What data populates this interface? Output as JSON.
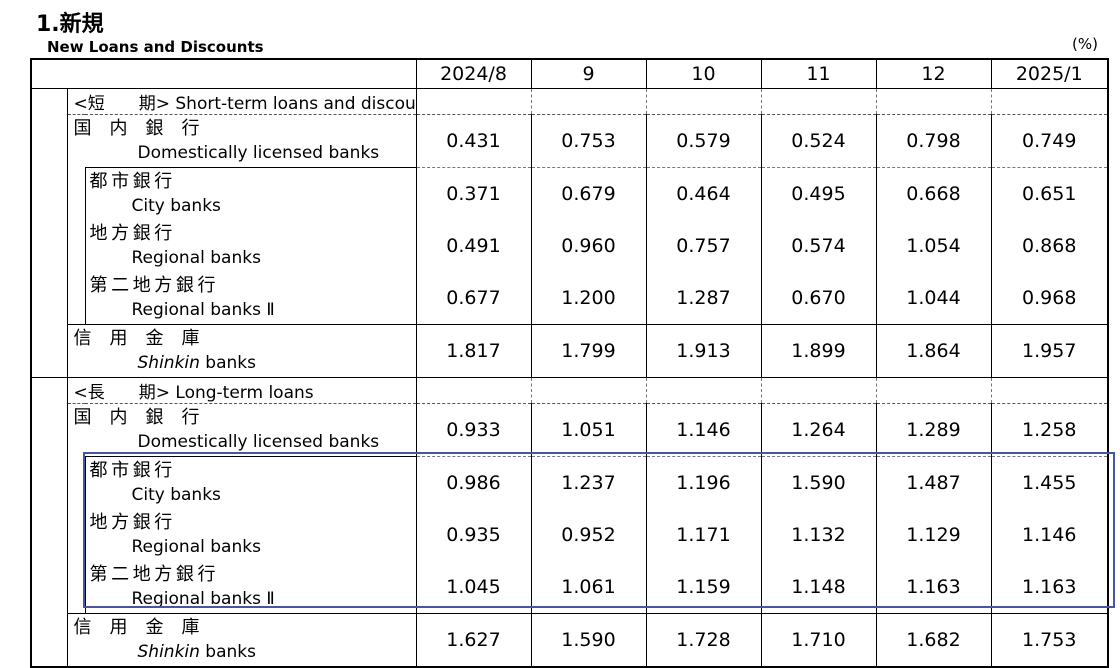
{
  "heading": {
    "title": "1.新規",
    "subtitle": "New Loans and Discounts",
    "unit": "(%)"
  },
  "columns": [
    "2024/8",
    "9",
    "10",
    "11",
    "12",
    "2025/1"
  ],
  "sections": [
    {
      "label": "<短　　期> Short-term loans and discounts",
      "rows": [
        {
          "jp": "国　内　銀　行",
          "en": "Domestically licensed banks",
          "level": 1,
          "values": [
            "0.431",
            "0.753",
            "0.579",
            "0.524",
            "0.798",
            "0.749"
          ]
        },
        {
          "jp": "都市銀行",
          "en": "City banks",
          "level": 2,
          "values": [
            "0.371",
            "0.679",
            "0.464",
            "0.495",
            "0.668",
            "0.651"
          ]
        },
        {
          "jp": "地方銀行",
          "en": "Regional banks",
          "level": 2,
          "values": [
            "0.491",
            "0.960",
            "0.757",
            "0.574",
            "1.054",
            "0.868"
          ]
        },
        {
          "jp": "第二地方銀行",
          "en": "Regional banks Ⅱ",
          "level": 2,
          "values": [
            "0.677",
            "1.200",
            "1.287",
            "0.670",
            "1.044",
            "0.968"
          ]
        },
        {
          "jp": "信　用　金　庫",
          "en_italic": "Shinkin",
          "en": " banks",
          "level": 1,
          "values": [
            "1.817",
            "1.799",
            "1.913",
            "1.899",
            "1.864",
            "1.957"
          ]
        }
      ]
    },
    {
      "label": "<長　　期> Long-term loans",
      "rows": [
        {
          "jp": "国　内　銀　行",
          "en": "Domestically licensed banks",
          "level": 1,
          "values": [
            "0.933",
            "1.051",
            "1.146",
            "1.264",
            "1.289",
            "1.258"
          ]
        },
        {
          "jp": "都市銀行",
          "en": "City banks",
          "level": 2,
          "values": [
            "0.986",
            "1.237",
            "1.196",
            "1.590",
            "1.487",
            "1.455"
          ]
        },
        {
          "jp": "地方銀行",
          "en": "Regional banks",
          "level": 2,
          "values": [
            "0.935",
            "0.952",
            "1.171",
            "1.132",
            "1.129",
            "1.146"
          ]
        },
        {
          "jp": "第二地方銀行",
          "en": "Regional banks Ⅱ",
          "level": 2,
          "values": [
            "1.045",
            "1.061",
            "1.159",
            "1.148",
            "1.163",
            "1.163"
          ]
        },
        {
          "jp": "信　用　金　庫",
          "en_italic": "Shinkin",
          "en": " banks",
          "level": 1,
          "values": [
            "1.627",
            "1.590",
            "1.728",
            "1.710",
            "1.682",
            "1.753"
          ]
        }
      ]
    }
  ],
  "colors": {
    "highlight_border": "#4a55a2"
  }
}
